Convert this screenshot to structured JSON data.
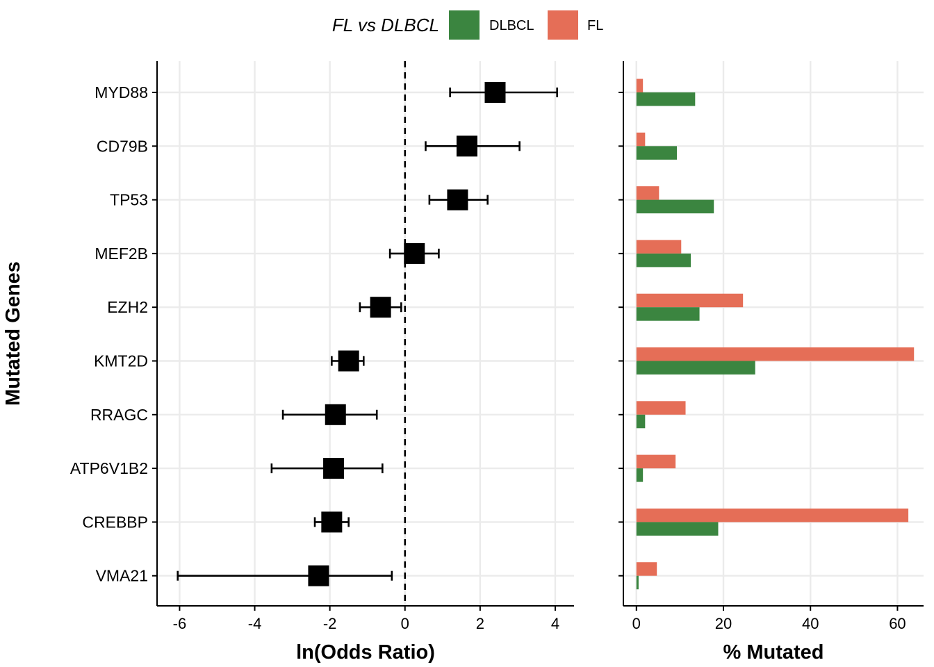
{
  "legend": {
    "title": "FL vs DLBCL",
    "items": [
      {
        "label": "DLBCL",
        "color": "#3b8540"
      },
      {
        "label": "FL",
        "color": "#e56e57"
      }
    ]
  },
  "y_axis_title": "Mutated Genes",
  "genes": [
    "MYD88",
    "CD79B",
    "TP53",
    "MEF2B",
    "EZH2",
    "KMT2D",
    "RRAGC",
    "ATP6V1B2",
    "CREBBP",
    "VMA21"
  ],
  "chart_data": [
    {
      "type": "scatter",
      "subtype": "forest-plot",
      "xlabel": "ln(Odds Ratio)",
      "xlim": [
        -6.6,
        4.5
      ],
      "xticks": [
        -6,
        -4,
        -2,
        0,
        2,
        4
      ],
      "reference_line": 0,
      "grid": true,
      "points": [
        {
          "gene": "MYD88",
          "estimate": 2.4,
          "lower": 1.2,
          "upper": 4.05
        },
        {
          "gene": "CD79B",
          "estimate": 1.65,
          "lower": 0.55,
          "upper": 3.05
        },
        {
          "gene": "TP53",
          "estimate": 1.4,
          "lower": 0.65,
          "upper": 2.2
        },
        {
          "gene": "MEF2B",
          "estimate": 0.25,
          "lower": -0.4,
          "upper": 0.9
        },
        {
          "gene": "EZH2",
          "estimate": -0.65,
          "lower": -1.2,
          "upper": -0.1
        },
        {
          "gene": "KMT2D",
          "estimate": -1.5,
          "lower": -1.95,
          "upper": -1.1
        },
        {
          "gene": "RRAGC",
          "estimate": -1.85,
          "lower": -3.25,
          "upper": -0.75
        },
        {
          "gene": "ATP6V1B2",
          "estimate": -1.9,
          "lower": -3.55,
          "upper": -0.6
        },
        {
          "gene": "CREBBP",
          "estimate": -1.95,
          "lower": -2.4,
          "upper": -1.5
        },
        {
          "gene": "VMA21",
          "estimate": -2.3,
          "lower": -6.05,
          "upper": -0.35
        }
      ]
    },
    {
      "type": "bar",
      "orientation": "horizontal",
      "xlabel": "% Mutated",
      "xlim": [
        -3,
        66
      ],
      "xticks": [
        0,
        20,
        40,
        60
      ],
      "grid": true,
      "categories": [
        "MYD88",
        "CD79B",
        "TP53",
        "MEF2B",
        "EZH2",
        "KMT2D",
        "RRAGC",
        "ATP6V1B2",
        "CREBBP",
        "VMA21"
      ],
      "series": [
        {
          "name": "DLBCL",
          "color": "#3b8540",
          "values": [
            13.5,
            9.3,
            17.8,
            12.5,
            14.5,
            27.3,
            2.0,
            1.5,
            18.8,
            0.5
          ]
        },
        {
          "name": "FL",
          "color": "#e56e57",
          "values": [
            1.5,
            2.0,
            5.2,
            10.3,
            24.5,
            63.8,
            11.3,
            9.0,
            62.5,
            4.7
          ]
        }
      ]
    }
  ]
}
